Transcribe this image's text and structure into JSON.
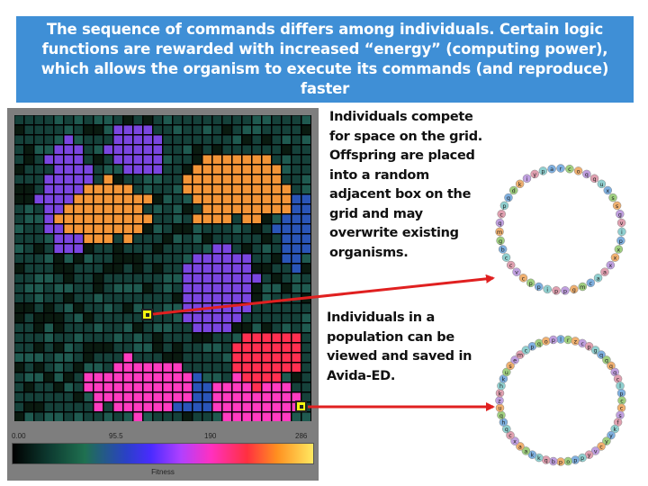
{
  "banner": {
    "text": "The sequence of commands differs among individuals. Certain logic functions are rewarded with increased “energy” (computing power), which allows the organism to execute its commands (and reproduce) faster"
  },
  "paragraphs": {
    "grid_text": "Individuals compete for space on the grid. Offspring are placed into a random adjacent box on the grid and may overwrite existing organisms.",
    "save_text": "Individuals in a population can be viewed and saved in Avida-ED."
  },
  "fitness_scale": {
    "ticks": [
      "0.00",
      "95.5",
      "190",
      "286"
    ],
    "label": "Fitness"
  },
  "colors": {
    "banner": "#3f8fd6",
    "arrow": "#e02020",
    "marker": "#f4f410",
    "cell_empty": "#0a1a10",
    "cell_dark_teal": "#15413a",
    "cell_mid_teal": "#1f5a50",
    "cell_blue": "#2a55b8",
    "cell_purple": "#7a46e0",
    "cell_orange": "#f39538",
    "cell_pink": "#ff3cc0",
    "cell_red": "#ff3050"
  },
  "genomes": {
    "genome_1": "rcoqquxssgvipxxxaacmgppippcvccbgmqcpqdkiypa",
    "genome_2": "lrzcpgqqqqclpccsfkyycvyppopbqkkaaxcqhquzkhkusemcpqopkdqkdkrqdxsgrdplbjcvcegqdlpxpmobecnd"
  }
}
